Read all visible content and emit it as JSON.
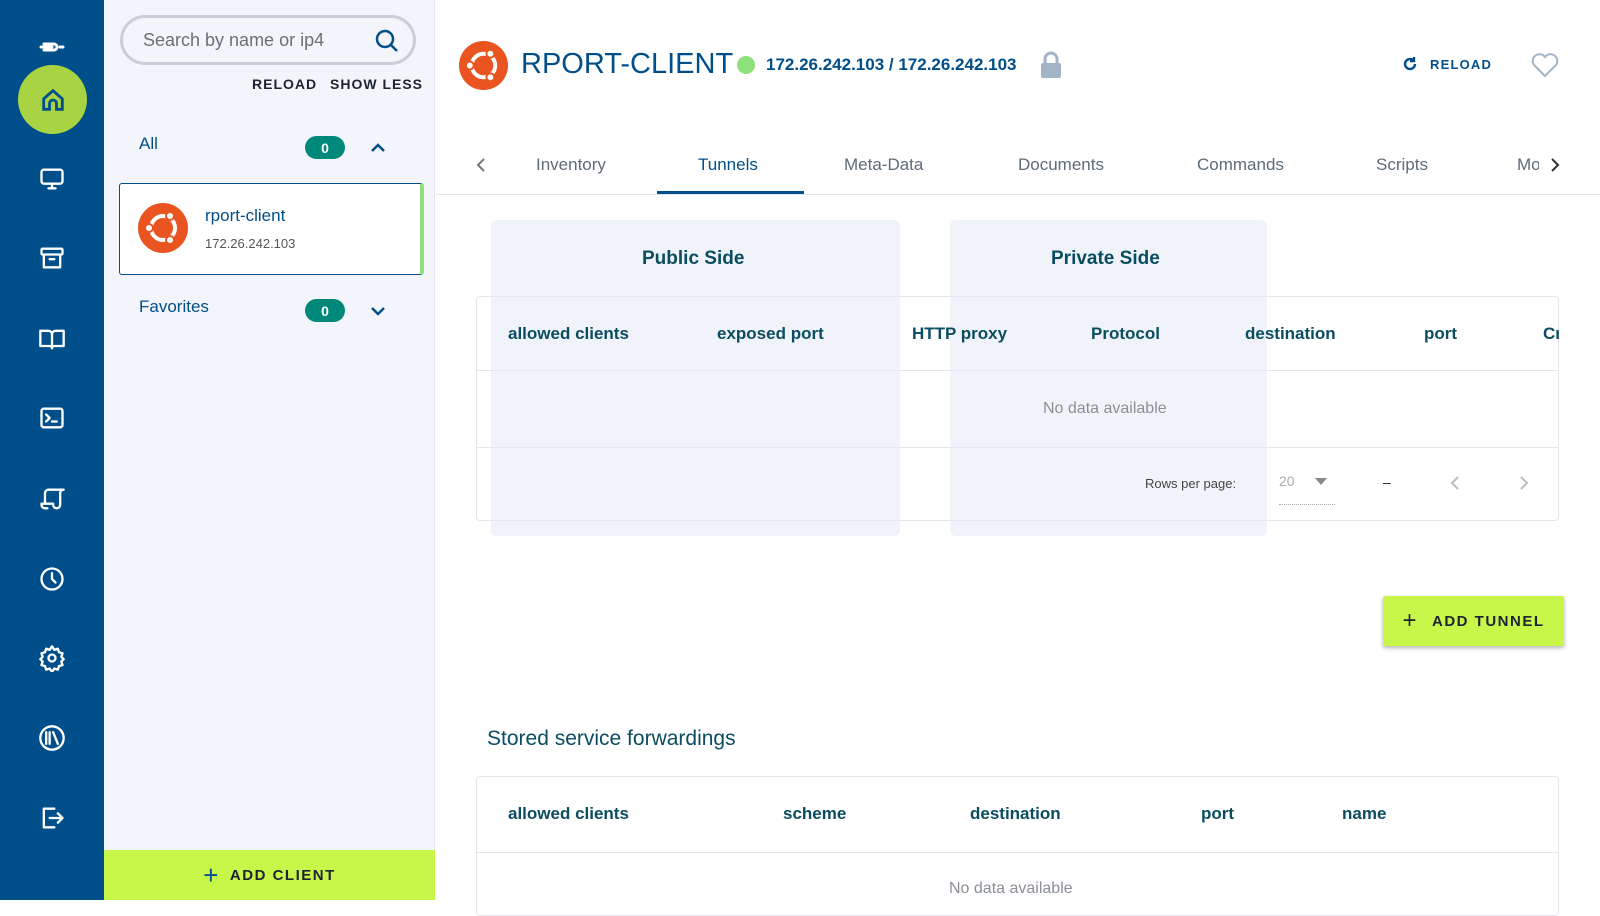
{
  "rail": {
    "items": [
      "logo-icon",
      "home-icon",
      "monitor-icon",
      "archive-icon",
      "book-icon",
      "terminal-icon",
      "script-icon",
      "clock-icon",
      "gear-icon",
      "library-icon",
      "logout-icon"
    ]
  },
  "panel": {
    "search_placeholder": "Search by name or ip4",
    "reload": "RELOAD",
    "show_less": "SHOW LESS",
    "all": {
      "label": "All",
      "count": "0"
    },
    "client": {
      "name": "rport-client",
      "ip": "172.26.242.103"
    },
    "favorites": {
      "label": "Favorites",
      "count": "0"
    },
    "add_client": "ADD CLIENT"
  },
  "header": {
    "title": "RPORT-CLIENT",
    "ips": "172.26.242.103 / 172.26.242.103",
    "reload": "RELOAD",
    "status_color": "#8de07a"
  },
  "tabs": [
    "Inventory",
    "Tunnels",
    "Meta-Data",
    "Documents",
    "Commands",
    "Scripts",
    "Mo"
  ],
  "active_tab": "Tunnels",
  "tunnels": {
    "public_side": "Public Side",
    "private_side": "Private Side",
    "columns": [
      "allowed clients",
      "exposed port",
      "HTTP proxy",
      "Protocol",
      "destination",
      "port",
      "Cr"
    ],
    "no_data": "No data available",
    "rows_per_page_label": "Rows per page:",
    "rows_per_page": "20",
    "range": "–",
    "add_tunnel": "ADD TUNNEL"
  },
  "stored": {
    "title": "Stored service forwardings",
    "columns": [
      "allowed clients",
      "scheme",
      "destination",
      "port",
      "name"
    ],
    "no_data": "No data available"
  },
  "colors": {
    "rail": "#004f8a",
    "accent": "#c8f74a",
    "badge": "#00897b",
    "ubuntu": "#e95420"
  }
}
